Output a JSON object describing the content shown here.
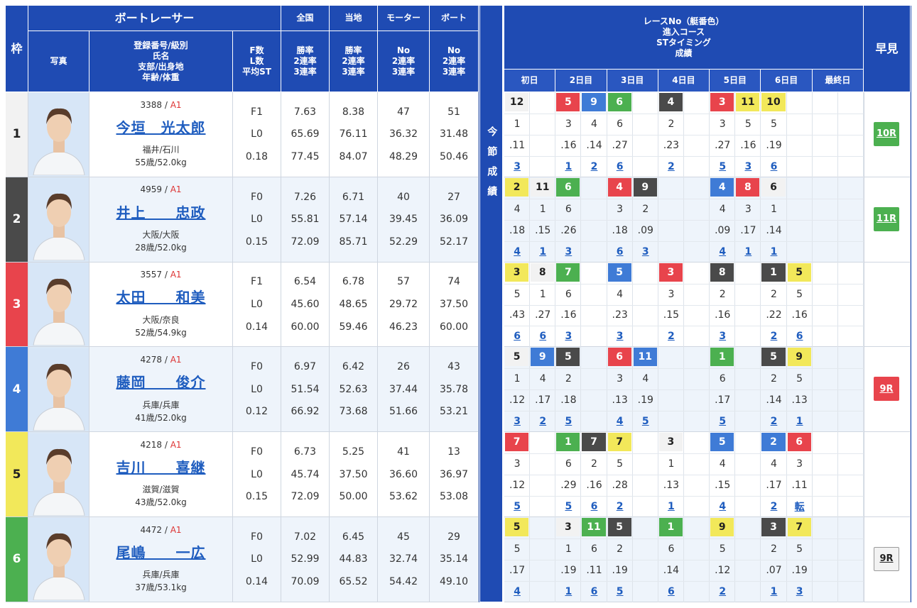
{
  "colors": {
    "header": "#1f4bb3",
    "waku": [
      "#f2f2f2",
      "#4a4a4a",
      "#e8444c",
      "#3f7bd6",
      "#f2e85a",
      "#4cb050"
    ],
    "badge": {
      "1": "#f2f2f2",
      "2": "#4a4a4a",
      "3": "#e8444c",
      "4": "#3f7bd6",
      "5": "#f2e85a",
      "6": "#4cb050"
    }
  },
  "headers": {
    "waku": "枠",
    "racer_group": "ボートレーサー",
    "photo": "写真",
    "racer_info": "登録番号/級別\n氏名\n支部/出身地\n年齢/体重",
    "fl": "F数\nL数\n平均ST",
    "zenkoku": "全国",
    "touchi": "当地",
    "motor": "モーター",
    "boat": "ボート",
    "rate": "勝率\n2連率\n3連率",
    "no_rate": "No\n2連率\n3連率",
    "right_title": "レースNo（艇番色）\n進入コース\nSTタイミング\n成績",
    "days": [
      "初日",
      "2日目",
      "3日目",
      "4日目",
      "5日目",
      "6日目",
      "最終日"
    ],
    "hayami": "早見",
    "konsetsu": "今節成績"
  },
  "racers": [
    {
      "waku": "1",
      "reg": "3388",
      "cls": "A1",
      "name": "今垣　光太郎",
      "branch": "福井/石川",
      "age": "55歳/52.0kg",
      "f": "F1",
      "l": "L0",
      "st": "0.18",
      "z": [
        "7.63",
        "65.69",
        "77.45"
      ],
      "t": [
        "8.38",
        "76.11",
        "84.07"
      ],
      "m": [
        "47",
        "36.32",
        "48.29"
      ],
      "b": [
        "51",
        "31.48",
        "50.46"
      ],
      "hayami": "10R",
      "hayami_color": "#4cb050",
      "results": [
        {
          "r": "12",
          "c": "1",
          "st": ".11",
          "res": "3",
          "boat": "1"
        },
        {
          "r": "",
          "c": "",
          "st": "",
          "res": "",
          "boat": ""
        },
        {
          "r": "5",
          "c": "3",
          "st": ".16",
          "res": "1",
          "boat": "3"
        },
        {
          "r": "9",
          "c": "4",
          "st": ".14",
          "res": "2",
          "boat": "4"
        },
        {
          "r": "6",
          "c": "6",
          "st": ".27",
          "res": "6",
          "boat": "6"
        },
        {
          "r": "",
          "c": "",
          "st": "",
          "res": "",
          "boat": ""
        },
        {
          "r": "4",
          "c": "2",
          "st": ".23",
          "res": "2",
          "boat": "2"
        },
        {
          "r": "",
          "c": "",
          "st": "",
          "res": "",
          "boat": ""
        },
        {
          "r": "3",
          "c": "3",
          "st": ".27",
          "res": "5",
          "boat": "3"
        },
        {
          "r": "11",
          "c": "5",
          "st": ".16",
          "res": "3",
          "boat": "5"
        },
        {
          "r": "10",
          "c": "5",
          "st": ".19",
          "res": "6",
          "boat": "5"
        },
        {
          "r": "",
          "c": "",
          "st": "",
          "res": "",
          "boat": ""
        },
        {
          "r": "",
          "c": "",
          "st": "",
          "res": "",
          "boat": ""
        },
        {
          "r": "",
          "c": "",
          "st": "",
          "res": "",
          "boat": ""
        }
      ]
    },
    {
      "waku": "2",
      "reg": "4959",
      "cls": "A1",
      "name": "井上　　忠政",
      "branch": "大阪/大阪",
      "age": "28歳/52.0kg",
      "f": "F0",
      "l": "L0",
      "st": "0.15",
      "z": [
        "7.26",
        "55.81",
        "72.09"
      ],
      "t": [
        "6.71",
        "57.14",
        "85.71"
      ],
      "m": [
        "40",
        "39.45",
        "52.29"
      ],
      "b": [
        "27",
        "36.09",
        "52.17"
      ],
      "hayami": "11R",
      "hayami_color": "#4cb050",
      "results": [
        {
          "r": "2",
          "c": "4",
          "st": ".18",
          "res": "4",
          "boat": "5"
        },
        {
          "r": "11",
          "c": "1",
          "st": ".15",
          "res": "1",
          "boat": "1"
        },
        {
          "r": "6",
          "c": "6",
          "st": ".26",
          "res": "3",
          "boat": "6"
        },
        {
          "r": "",
          "c": "",
          "st": "",
          "res": "",
          "boat": ""
        },
        {
          "r": "4",
          "c": "3",
          "st": ".18",
          "res": "6",
          "boat": "3"
        },
        {
          "r": "9",
          "c": "2",
          "st": ".09",
          "res": "3",
          "boat": "2"
        },
        {
          "r": "",
          "c": "",
          "st": "",
          "res": "",
          "boat": ""
        },
        {
          "r": "",
          "c": "",
          "st": "",
          "res": "",
          "boat": ""
        },
        {
          "r": "4",
          "c": "4",
          "st": ".09",
          "res": "4",
          "boat": "4"
        },
        {
          "r": "8",
          "c": "3",
          "st": ".17",
          "res": "1",
          "boat": "3"
        },
        {
          "r": "6",
          "c": "1",
          "st": ".14",
          "res": "1",
          "boat": "1"
        },
        {
          "r": "",
          "c": "",
          "st": "",
          "res": "",
          "boat": ""
        },
        {
          "r": "",
          "c": "",
          "st": "",
          "res": "",
          "boat": ""
        },
        {
          "r": "",
          "c": "",
          "st": "",
          "res": "",
          "boat": ""
        }
      ]
    },
    {
      "waku": "3",
      "reg": "3557",
      "cls": "A1",
      "name": "太田　　和美",
      "branch": "大阪/奈良",
      "age": "52歳/54.9kg",
      "f": "F1",
      "l": "L0",
      "st": "0.14",
      "z": [
        "6.54",
        "45.60",
        "60.00"
      ],
      "t": [
        "6.78",
        "48.65",
        "59.46"
      ],
      "m": [
        "57",
        "29.72",
        "46.23"
      ],
      "b": [
        "74",
        "37.50",
        "60.00"
      ],
      "hayami": "",
      "hayami_color": "",
      "results": [
        {
          "r": "3",
          "c": "5",
          "st": ".43",
          "res": "6",
          "boat": "5"
        },
        {
          "r": "8",
          "c": "1",
          "st": ".27",
          "res": "6",
          "boat": "1"
        },
        {
          "r": "7",
          "c": "6",
          "st": ".16",
          "res": "3",
          "boat": "6"
        },
        {
          "r": "",
          "c": "",
          "st": "",
          "res": "",
          "boat": ""
        },
        {
          "r": "5",
          "c": "4",
          "st": ".23",
          "res": "3",
          "boat": "4"
        },
        {
          "r": "",
          "c": "",
          "st": "",
          "res": "",
          "boat": ""
        },
        {
          "r": "3",
          "c": "3",
          "st": ".15",
          "res": "2",
          "boat": "3"
        },
        {
          "r": "",
          "c": "",
          "st": "",
          "res": "",
          "boat": ""
        },
        {
          "r": "8",
          "c": "2",
          "st": ".16",
          "res": "3",
          "boat": "2"
        },
        {
          "r": "",
          "c": "",
          "st": "",
          "res": "",
          "boat": ""
        },
        {
          "r": "1",
          "c": "2",
          "st": ".22",
          "res": "2",
          "boat": "2"
        },
        {
          "r": "5",
          "c": "5",
          "st": ".16",
          "res": "6",
          "boat": "5"
        },
        {
          "r": "",
          "c": "",
          "st": "",
          "res": "",
          "boat": ""
        },
        {
          "r": "",
          "c": "",
          "st": "",
          "res": "",
          "boat": ""
        }
      ]
    },
    {
      "waku": "4",
      "reg": "4278",
      "cls": "A1",
      "name": "藤岡　　俊介",
      "branch": "兵庫/兵庫",
      "age": "41歳/52.0kg",
      "f": "F0",
      "l": "L0",
      "st": "0.12",
      "z": [
        "6.97",
        "51.54",
        "66.92"
      ],
      "t": [
        "6.42",
        "52.63",
        "73.68"
      ],
      "m": [
        "26",
        "37.44",
        "51.66"
      ],
      "b": [
        "43",
        "35.78",
        "53.21"
      ],
      "hayami": "9R",
      "hayami_color": "#e8444c",
      "results": [
        {
          "r": "5",
          "c": "1",
          "st": ".12",
          "res": "3",
          "boat": "1"
        },
        {
          "r": "9",
          "c": "4",
          "st": ".17",
          "res": "2",
          "boat": "4"
        },
        {
          "r": "5",
          "c": "2",
          "st": ".18",
          "res": "5",
          "boat": "2"
        },
        {
          "r": "",
          "c": "",
          "st": "",
          "res": "",
          "boat": ""
        },
        {
          "r": "6",
          "c": "3",
          "st": ".13",
          "res": "4",
          "boat": "3"
        },
        {
          "r": "11",
          "c": "4",
          "st": ".19",
          "res": "5",
          "boat": "4"
        },
        {
          "r": "",
          "c": "",
          "st": "",
          "res": "",
          "boat": ""
        },
        {
          "r": "",
          "c": "",
          "st": "",
          "res": "",
          "boat": ""
        },
        {
          "r": "1",
          "c": "6",
          "st": ".17",
          "res": "5",
          "boat": "6"
        },
        {
          "r": "",
          "c": "",
          "st": "",
          "res": "",
          "boat": ""
        },
        {
          "r": "5",
          "c": "2",
          "st": ".14",
          "res": "2",
          "boat": "2"
        },
        {
          "r": "9",
          "c": "5",
          "st": ".13",
          "res": "1",
          "boat": "5"
        },
        {
          "r": "",
          "c": "",
          "st": "",
          "res": "",
          "boat": ""
        },
        {
          "r": "",
          "c": "",
          "st": "",
          "res": "",
          "boat": ""
        }
      ]
    },
    {
      "waku": "5",
      "reg": "4218",
      "cls": "A1",
      "name": "吉川　　喜継",
      "branch": "滋賀/滋賀",
      "age": "43歳/52.0kg",
      "f": "F0",
      "l": "L0",
      "st": "0.15",
      "z": [
        "6.73",
        "45.74",
        "72.09"
      ],
      "t": [
        "5.25",
        "37.50",
        "50.00"
      ],
      "m": [
        "41",
        "36.60",
        "53.62"
      ],
      "b": [
        "13",
        "36.97",
        "53.08"
      ],
      "hayami": "",
      "hayami_color": "",
      "results": [
        {
          "r": "7",
          "c": "3",
          "st": ".12",
          "res": "5",
          "boat": "3"
        },
        {
          "r": "",
          "c": "",
          "st": "",
          "res": "",
          "boat": ""
        },
        {
          "r": "1",
          "c": "6",
          "st": ".29",
          "res": "5",
          "boat": "6"
        },
        {
          "r": "7",
          "c": "2",
          "st": ".16",
          "res": "6",
          "boat": "2"
        },
        {
          "r": "7",
          "c": "5",
          "st": ".28",
          "res": "2",
          "boat": "5"
        },
        {
          "r": "",
          "c": "",
          "st": "",
          "res": "",
          "boat": ""
        },
        {
          "r": "3",
          "c": "1",
          "st": ".13",
          "res": "1",
          "boat": "1"
        },
        {
          "r": "",
          "c": "",
          "st": "",
          "res": "",
          "boat": ""
        },
        {
          "r": "5",
          "c": "4",
          "st": ".15",
          "res": "4",
          "boat": "4"
        },
        {
          "r": "",
          "c": "",
          "st": "",
          "res": "",
          "boat": ""
        },
        {
          "r": "2",
          "c": "4",
          "st": ".17",
          "res": "2",
          "boat": "4"
        },
        {
          "r": "6",
          "c": "3",
          "st": ".11",
          "res": "転",
          "boat": "3"
        },
        {
          "r": "",
          "c": "",
          "st": "",
          "res": "",
          "boat": ""
        },
        {
          "r": "",
          "c": "",
          "st": "",
          "res": "",
          "boat": ""
        }
      ]
    },
    {
      "waku": "6",
      "reg": "4472",
      "cls": "A1",
      "name": "尾嶋　　一広",
      "branch": "兵庫/兵庫",
      "age": "37歳/53.1kg",
      "f": "F0",
      "l": "L0",
      "st": "0.14",
      "z": [
        "7.02",
        "52.99",
        "70.09"
      ],
      "t": [
        "6.45",
        "44.83",
        "65.52"
      ],
      "m": [
        "45",
        "32.74",
        "54.42"
      ],
      "b": [
        "29",
        "35.14",
        "49.10"
      ],
      "hayami": "9R",
      "hayami_color": "#f2f2f2",
      "results": [
        {
          "r": "5",
          "c": "5",
          "st": ".17",
          "res": "4",
          "boat": "5"
        },
        {
          "r": "",
          "c": "",
          "st": "",
          "res": "",
          "boat": ""
        },
        {
          "r": "3",
          "c": "1",
          "st": ".19",
          "res": "1",
          "boat": "1"
        },
        {
          "r": "11",
          "c": "6",
          "st": ".11",
          "res": "6",
          "boat": "6"
        },
        {
          "r": "5",
          "c": "2",
          "st": ".19",
          "res": "5",
          "boat": "2"
        },
        {
          "r": "",
          "c": "",
          "st": "",
          "res": "",
          "boat": ""
        },
        {
          "r": "1",
          "c": "6",
          "st": ".14",
          "res": "6",
          "boat": "6"
        },
        {
          "r": "",
          "c": "",
          "st": "",
          "res": "",
          "boat": ""
        },
        {
          "r": "9",
          "c": "5",
          "st": ".12",
          "res": "2",
          "boat": "5"
        },
        {
          "r": "",
          "c": "",
          "st": "",
          "res": "",
          "boat": ""
        },
        {
          "r": "3",
          "c": "2",
          "st": ".07",
          "res": "1",
          "boat": "2"
        },
        {
          "r": "7",
          "c": "5",
          "st": ".19",
          "res": "3",
          "boat": "5"
        },
        {
          "r": "",
          "c": "",
          "st": "",
          "res": "",
          "boat": ""
        },
        {
          "r": "",
          "c": "",
          "st": "",
          "res": "",
          "boat": ""
        }
      ]
    }
  ]
}
